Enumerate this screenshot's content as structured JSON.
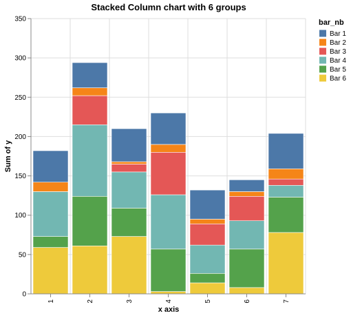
{
  "chart_data": {
    "type": "bar",
    "stacked": true,
    "title": "Stacked Column chart with 6 groups",
    "xlabel": "x axis",
    "ylabel": "Sum of y",
    "ylim": [
      0,
      350
    ],
    "yticks": [
      0,
      50,
      100,
      150,
      200,
      250,
      300,
      350
    ],
    "grid": true,
    "legend_title": "bar_nb",
    "legend_position": "top-right",
    "categories": [
      "1",
      "2",
      "3",
      "4",
      "5",
      "6",
      "7"
    ],
    "series": [
      {
        "name": "Bar 1",
        "color": "#4c78a8",
        "values": [
          40,
          32,
          42,
          40,
          37,
          15,
          45
        ]
      },
      {
        "name": "Bar 2",
        "color": "#f58518",
        "values": [
          12,
          10,
          3,
          10,
          6,
          6,
          13
        ]
      },
      {
        "name": "Bar 3",
        "color": "#e45756",
        "values": [
          0,
          37,
          10,
          54,
          27,
          31,
          8
        ]
      },
      {
        "name": "Bar 4",
        "color": "#72b7b2",
        "values": [
          57,
          91,
          46,
          69,
          36,
          36,
          15
        ]
      },
      {
        "name": "Bar 5",
        "color": "#54a24b",
        "values": [
          14,
          63,
          36,
          54,
          12,
          49,
          45
        ]
      },
      {
        "name": "Bar 6",
        "color": "#eeca3b",
        "values": [
          59,
          61,
          73,
          3,
          14,
          8,
          78
        ]
      }
    ]
  }
}
